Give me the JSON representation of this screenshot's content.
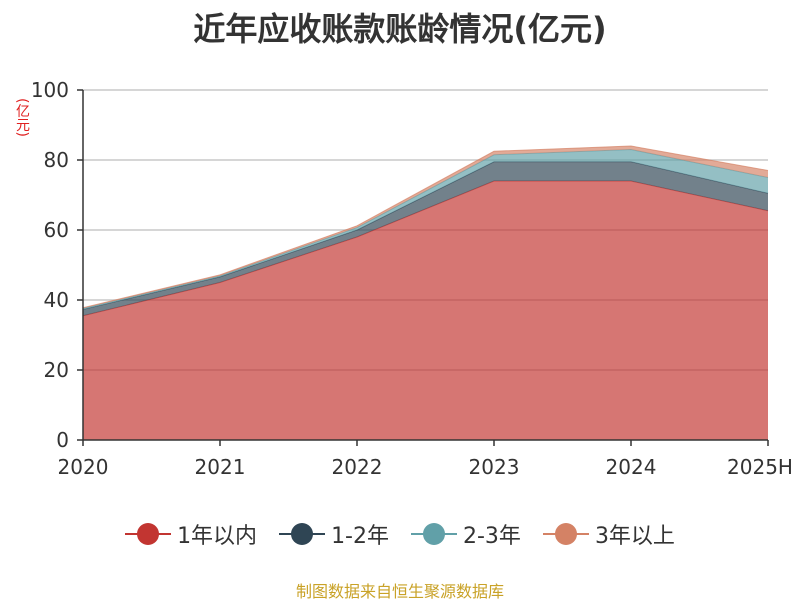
{
  "chart_data": {
    "type": "area",
    "title": "近年应收账款账龄情况(亿元)",
    "ylabel": "(亿元)",
    "xlabel": "",
    "categories": [
      "2020",
      "2021",
      "2022",
      "2023",
      "2024",
      "2025H"
    ],
    "ylim": [
      0,
      100
    ],
    "yticks": [
      0,
      20,
      40,
      60,
      80,
      100
    ],
    "stacked": true,
    "grid": true,
    "legend_position": "bottom",
    "series": [
      {
        "name": "1年以内",
        "values": [
          35.5,
          45,
          58,
          74,
          74,
          65.5
        ],
        "color": "#c23531"
      },
      {
        "name": "1-2年",
        "values": [
          1.8,
          1.6,
          2,
          5.5,
          5.5,
          5
        ],
        "color": "#2f4554"
      },
      {
        "name": "2-3年",
        "values": [
          0.3,
          0.3,
          0.7,
          2,
          3.5,
          4.5
        ],
        "color": "#61a0a8"
      },
      {
        "name": "3年以上",
        "values": [
          0.2,
          0.3,
          0.5,
          1,
          1,
          2
        ],
        "color": "#d48265"
      }
    ]
  },
  "source": "制图数据来自恒生聚源数据库"
}
